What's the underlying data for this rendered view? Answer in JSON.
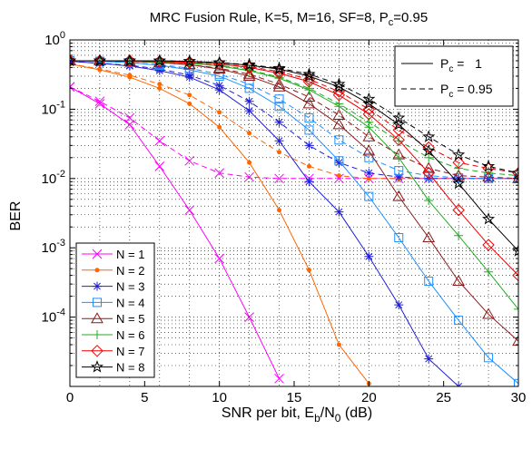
{
  "chart_data": {
    "type": "line",
    "title": "MRC Fusion Rule, K=5, M=16, SF=8, P",
    "title_sub": "c",
    "title_tail": "=0.95",
    "xlabel": "SNR per bit, E",
    "xlabel_sub1": "b",
    "xlabel_mid": "/N",
    "xlabel_sub2": "0",
    "xlabel_tail": " (dB)",
    "ylabel": "BER",
    "xlim": [
      0,
      30
    ],
    "ylim": [
      1e-05,
      1
    ],
    "yscale": "log",
    "grid": true,
    "xticks": [
      "0",
      "5",
      "10",
      "15",
      "20",
      "25",
      "30"
    ],
    "ytick_base": "10",
    "ytick_exponents": [
      "0",
      "-1",
      "-2",
      "-3",
      "-4"
    ],
    "style_legend": {
      "placement": "top-right",
      "entries": [
        {
          "prefix": "P",
          "sub": "c",
          "tail": " =   1",
          "dash": "solid"
        },
        {
          "prefix": "P",
          "sub": "c",
          "tail": " = 0.95",
          "dash": "dashed"
        }
      ]
    },
    "series_legend": {
      "placement": "bottom-left"
    },
    "x": [
      0,
      2,
      4,
      6,
      8,
      10,
      12,
      14,
      16,
      18,
      20,
      22,
      24,
      26,
      28,
      30
    ],
    "series": [
      {
        "name": "N = 1",
        "color": "#ff00ff",
        "marker": "x",
        "pc1": [
          0.21,
          0.12,
          0.06,
          0.015,
          0.0035,
          0.0007,
          0.0001,
          1.3e-05,
          null,
          null,
          null,
          null,
          null,
          null,
          null,
          null
        ],
        "pc095": [
          0.21,
          0.13,
          0.075,
          0.035,
          0.018,
          0.012,
          0.0105,
          0.01,
          0.01,
          0.01,
          0.01,
          0.01,
          0.01,
          0.01,
          0.01,
          0.01
        ]
      },
      {
        "name": "N = 2",
        "color": "#ff6600",
        "marker": "dot",
        "pc1": [
          0.45,
          0.37,
          0.29,
          0.2,
          0.12,
          0.055,
          0.017,
          0.0035,
          0.00048,
          4e-05,
          1.1e-05,
          null,
          null,
          null,
          null,
          null
        ],
        "pc095": [
          0.45,
          0.38,
          0.31,
          0.23,
          0.16,
          0.09,
          0.045,
          0.024,
          0.015,
          0.011,
          0.01,
          0.01,
          0.01,
          0.01,
          0.01,
          0.01
        ]
      },
      {
        "name": "N = 3",
        "color": "#1f1fd9",
        "marker": "star",
        "pc1": [
          0.49,
          0.46,
          0.42,
          0.36,
          0.29,
          0.19,
          0.095,
          0.035,
          0.009,
          0.0033,
          0.00075,
          0.00015,
          2.5e-05,
          1e-05,
          null,
          null
        ],
        "pc095": [
          0.49,
          0.46,
          0.43,
          0.38,
          0.31,
          0.22,
          0.13,
          0.065,
          0.03,
          0.017,
          0.012,
          0.0105,
          0.01,
          0.01,
          0.01,
          0.01
        ]
      },
      {
        "name": "N = 4",
        "color": "#1e90ff",
        "marker": "square",
        "pc1": [
          0.5,
          0.49,
          0.47,
          0.43,
          0.37,
          0.3,
          0.2,
          0.11,
          0.05,
          0.018,
          0.0055,
          0.0014,
          0.00033,
          9e-05,
          2.6e-05,
          1.1e-05
        ],
        "pc095": [
          0.5,
          0.49,
          0.47,
          0.44,
          0.39,
          0.32,
          0.23,
          0.14,
          0.075,
          0.036,
          0.02,
          0.013,
          0.011,
          0.0102,
          0.01,
          0.01
        ]
      },
      {
        "name": "N = 5",
        "color": "#8b1a1a",
        "marker": "triangle",
        "pc1": [
          0.5,
          0.5,
          0.49,
          0.47,
          0.44,
          0.38,
          0.3,
          0.21,
          0.12,
          0.06,
          0.025,
          0.0055,
          0.0014,
          0.00033,
          0.00011,
          4.5e-05
        ],
        "pc095": [
          0.5,
          0.5,
          0.49,
          0.47,
          0.44,
          0.39,
          0.32,
          0.23,
          0.15,
          0.082,
          0.04,
          0.022,
          0.014,
          0.011,
          0.0105,
          0.01
        ]
      },
      {
        "name": "N = 6",
        "color": "#22aa22",
        "marker": "plus",
        "pc1": [
          0.5,
          0.5,
          0.5,
          0.48,
          0.46,
          0.42,
          0.36,
          0.28,
          0.19,
          0.11,
          0.055,
          0.02,
          0.0048,
          0.0015,
          0.00045,
          0.00013
        ],
        "pc095": [
          0.5,
          0.5,
          0.5,
          0.48,
          0.46,
          0.43,
          0.37,
          0.29,
          0.2,
          0.12,
          0.065,
          0.035,
          0.02,
          0.014,
          0.012,
          0.011
        ]
      },
      {
        "name": "N = 7",
        "color": "#ee0000",
        "marker": "diamond",
        "pc1": [
          0.5,
          0.5,
          0.5,
          0.49,
          0.47,
          0.45,
          0.4,
          0.33,
          0.25,
          0.16,
          0.085,
          0.036,
          0.012,
          0.0035,
          0.0011,
          0.0004
        ],
        "pc095": [
          0.5,
          0.5,
          0.5,
          0.49,
          0.48,
          0.45,
          0.41,
          0.35,
          0.27,
          0.18,
          0.1,
          0.05,
          0.028,
          0.017,
          0.014,
          0.012
        ]
      },
      {
        "name": "N = 8",
        "color": "#000000",
        "marker": "pentagram",
        "pc1": [
          0.5,
          0.5,
          0.5,
          0.5,
          0.49,
          0.47,
          0.43,
          0.38,
          0.3,
          0.21,
          0.12,
          0.06,
          0.025,
          0.0085,
          0.0026,
          0.0009
        ],
        "pc095": [
          0.5,
          0.5,
          0.5,
          0.5,
          0.49,
          0.47,
          0.44,
          0.39,
          0.32,
          0.23,
          0.14,
          0.075,
          0.04,
          0.022,
          0.015,
          0.012
        ]
      }
    ]
  }
}
